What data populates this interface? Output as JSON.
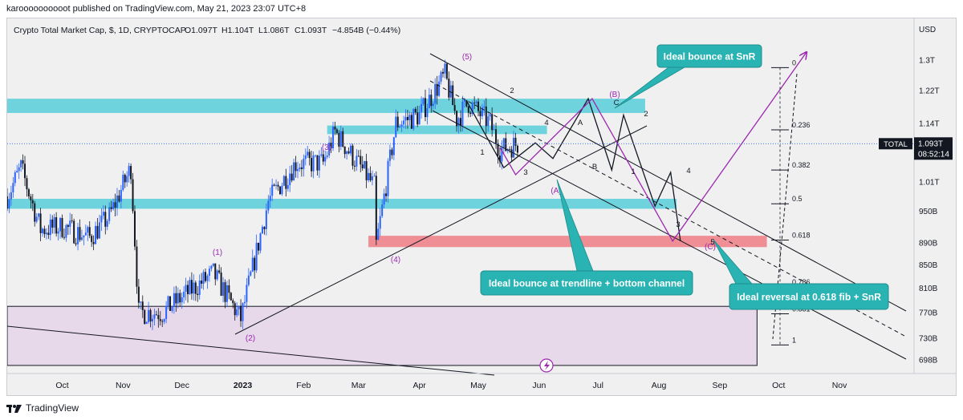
{
  "header": {
    "publisher_text": "karoooooooooot published on TradingView.com, May 21, 2023 23:07 UTC+8"
  },
  "legend": {
    "symbol_line": "Crypto Total Market Cap, $, 1D, CRYPTOCAP",
    "open": "O1.097T",
    "high": "H1.104T",
    "low": "L1.086T",
    "close": "C1.093T",
    "change": "−4.854B (−0.44%)"
  },
  "price_scale": {
    "currency": "USD",
    "ticks": [
      "1.3T",
      "1.22T",
      "1.14T",
      "1.01T",
      "950B",
      "890B",
      "850B",
      "810B",
      "770B",
      "730B",
      "698B"
    ],
    "total_label": "TOTAL",
    "last_price": "1.093T",
    "countdown": "08:52:14"
  },
  "time_axis": {
    "ticks": [
      "Oct",
      "Nov",
      "Dec",
      "2023",
      "Feb",
      "Mar",
      "Apr",
      "May",
      "Jun",
      "Jul",
      "Aug",
      "Sep",
      "Oct",
      "Nov"
    ]
  },
  "annotations": {
    "callouts": [
      "Ideal bounce at SnR",
      "Ideal bounce at trendline + bottom channel",
      "Ideal reversal at 0.618 fib + SnR"
    ],
    "wave_labels_purple": [
      "(1)",
      "(2)",
      "(3)",
      "(4)",
      "(5)",
      "(A)",
      "(B)",
      "(C)"
    ],
    "wave_labels_black": [
      "1",
      "2",
      "3",
      "4",
      "A",
      "B",
      "C",
      "1",
      "2",
      "3",
      "4",
      "5"
    ],
    "fib_levels": [
      "0",
      "0.236",
      "0.382",
      "0.5",
      "0.618",
      "0.786",
      "0.881",
      "1"
    ]
  },
  "footer": {
    "brand": "TradingView"
  },
  "colors": {
    "up_candle": "#2962ff",
    "down_candle": "#131722",
    "wave_purple": "#9c27b0",
    "zone_cyan": "#6fd3de",
    "zone_red": "#ef8f95",
    "zone_lilac": "#e7d8ea",
    "callout_teal": "#2ab3b3"
  },
  "chart_data": {
    "type": "candlestick",
    "title": "Crypto Total Market Cap, $, 1D, CRYPTOCAP",
    "interval": "1D",
    "x_range": [
      "2022-09-03",
      "2023-11-30"
    ],
    "y_unit": "USD",
    "y_scale": "log",
    "ylim": [
      680000000000,
      1360000000000
    ],
    "last": {
      "open": 1097000000000.0,
      "high": 1104000000000.0,
      "low": 1086000000000.0,
      "close": 1093000000000.0,
      "change": -4854000000.0,
      "change_pct": -0.44
    },
    "price_path": [
      {
        "date": "2022-09-03",
        "value": 980000000000.0
      },
      {
        "date": "2022-09-10",
        "value": 1040000000000.0
      },
      {
        "date": "2022-09-20",
        "value": 915000000000.0
      },
      {
        "date": "2022-10-01",
        "value": 920000000000.0
      },
      {
        "date": "2022-10-15",
        "value": 900000000000.0
      },
      {
        "date": "2022-10-25",
        "value": 940000000000.0
      },
      {
        "date": "2022-11-05",
        "value": 1040000000000.0
      },
      {
        "date": "2022-11-09",
        "value": 770000000000.0
      },
      {
        "date": "2022-11-21",
        "value": 770000000000.0
      },
      {
        "date": "2022-12-03",
        "value": 800000000000.0
      },
      {
        "date": "2022-12-17",
        "value": 835000000000.0
      },
      {
        "date": "2022-12-31",
        "value": 760000000000.0
      },
      {
        "date": "2023-01-14",
        "value": 970000000000.0
      },
      {
        "date": "2023-01-28",
        "value": 1050000000000.0
      },
      {
        "date": "2023-02-11",
        "value": 1050000000000.0
      },
      {
        "date": "2023-02-17",
        "value": 1120000000000.0
      },
      {
        "date": "2023-03-09",
        "value": 1000000000000.0
      },
      {
        "date": "2023-03-10",
        "value": 885000000000.0
      },
      {
        "date": "2023-03-20",
        "value": 1140000000000.0
      },
      {
        "date": "2023-04-01",
        "value": 1160000000000.0
      },
      {
        "date": "2023-04-14",
        "value": 1260000000000.0
      },
      {
        "date": "2023-04-20",
        "value": 1150000000000.0
      },
      {
        "date": "2023-04-26",
        "value": 1190000000000.0
      },
      {
        "date": "2023-05-07",
        "value": 1140000000000.0
      },
      {
        "date": "2023-05-12",
        "value": 1080000000000.0
      },
      {
        "date": "2023-05-21",
        "value": 1093000000000.0
      }
    ],
    "zones": [
      {
        "color": "cyan",
        "from": "2022-09-03",
        "to": "2023-07-25",
        "y": [
          1165000000000.0,
          1200000000000.0
        ]
      },
      {
        "color": "cyan",
        "from": "2023-02-13",
        "to": "2023-06-05",
        "y": [
          1115000000000.0,
          1135000000000.0
        ]
      },
      {
        "color": "cyan",
        "from": "2022-09-03",
        "to": "2023-08-10",
        "y": [
          955000000000.0,
          975000000000.0
        ]
      },
      {
        "color": "red",
        "from": "2023-03-06",
        "to": "2023-09-25",
        "y": [
          882000000000.0,
          903000000000.0
        ]
      },
      {
        "color": "lilac",
        "from": "2022-09-03",
        "to": "2023-09-20",
        "y": [
          690000000000.0,
          780000000000.0
        ]
      }
    ],
    "fib_retracement": [
      {
        "level": "0",
        "value": 1280000000000.0
      },
      {
        "level": "0.236",
        "value": 1125000000000.0
      },
      {
        "level": "0.382",
        "value": 1035000000000.0
      },
      {
        "level": "0.5",
        "value": 965000000000.0
      },
      {
        "level": "0.618",
        "value": 895000000000.0
      },
      {
        "level": "0.786",
        "value": 812000000000.0
      },
      {
        "level": "0.881",
        "value": 768000000000.0
      },
      {
        "level": "1",
        "value": 720000000000.0
      }
    ],
    "projection_purple": [
      {
        "date": "2023-05-12",
        "value": 1085000000000.0
      },
      {
        "date": "2023-05-20",
        "value": 1025000000000.0
      },
      {
        "date": "2023-06-28",
        "value": 1200000000000.0
      },
      {
        "date": "2023-08-08",
        "value": 893000000000.0
      },
      {
        "date": "2023-10-15",
        "value": 1320000000000.0
      }
    ],
    "projection_black": [
      {
        "date": "2023-04-25",
        "value": 1195000000000.0
      },
      {
        "date": "2023-05-14",
        "value": 1040000000000.0
      },
      {
        "date": "2023-05-30",
        "value": 1095000000000.0
      },
      {
        "date": "2023-06-08",
        "value": 1060000000000.0
      },
      {
        "date": "2023-06-26",
        "value": 1200000000000.0
      },
      {
        "date": "2023-07-08",
        "value": 1035000000000.0
      },
      {
        "date": "2023-07-14",
        "value": 1160000000000.0
      },
      {
        "date": "2023-07-30",
        "value": 960000000000.0
      },
      {
        "date": "2023-08-07",
        "value": 1030000000000.0
      },
      {
        "date": "2023-08-12",
        "value": 893000000000.0
      }
    ]
  }
}
